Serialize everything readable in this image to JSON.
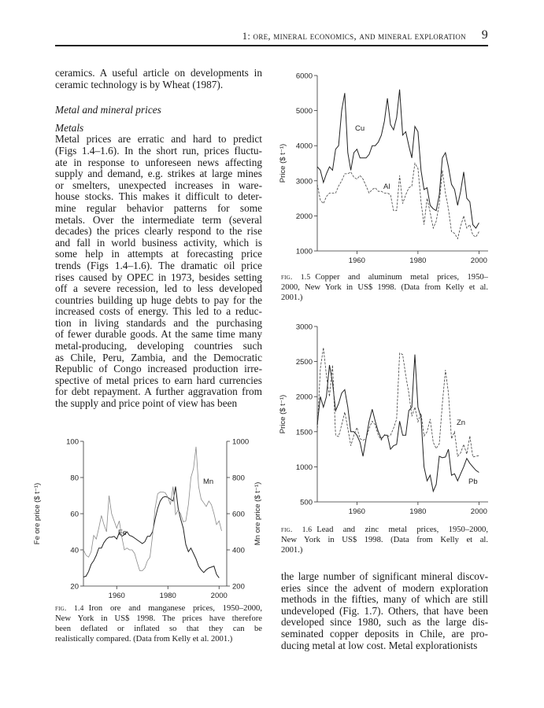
{
  "header": {
    "running_title": "1: ore, mineral economics, and mineral exploration",
    "page_number": "9"
  },
  "left_column": {
    "intro_lines": [
      "ceramics. A useful article on developments in",
      "ceramic technology is by Wheat (1987)."
    ],
    "section_heading": "Metal and mineral prices",
    "subsection_heading": "Metals",
    "body_lines": [
      "Metal prices are erratic and hard to predict",
      "(Figs 1.4–1.6). In the short run, prices fluctu-",
      "ate in response to unforeseen news affecting",
      "supply and demand, e.g. strikes at large mines",
      "or smelters, unexpected increases in ware-",
      "house stocks. This makes it difficult to deter-",
      "mine regular behavior patterns for some",
      "metals. Over the intermediate term (several",
      "decades) the prices clearly respond to the rise",
      "and fall in world business activity, which is",
      "some help in attempts at forecasting price",
      "trends (Figs 1.4–1.6). The dramatic oil price",
      "rises caused by OPEC in 1973, besides setting",
      "off a severe recession, led to less developed",
      "countries building up huge debts to pay for the",
      "increased costs of energy. This led to a reduc-",
      "tion in living standards and the purchasing",
      "of fewer durable goods. At the same time many",
      "metal-producing, developing countries such",
      "as Chile, Peru, Zambia, and the Democratic",
      "Republic of Congo increased production irre-",
      "spective of metal prices to earn hard currencies",
      "for debt repayment. A further aggravation from",
      "the supply and price point of view has been"
    ]
  },
  "right_column": {
    "body_lines": [
      "the large number of significant mineral discov-",
      "eries since the advent of modern exploration",
      "methods in the fifties, many of which are still",
      "undeveloped (Fig. 1.7). Others, that have been",
      "developed since 1980, such as the large dis-",
      "seminated copper deposits in Chile, are pro-",
      "ducing metal at low cost. Metal explorationists"
    ]
  },
  "figures": [
    {
      "label": "fig. 1.4",
      "caption_lines": [
        "Iron ore and manganese prices, 1950–2000,",
        "New York in US$ 1998. The prices have therefore",
        "been deflated or inflated so that they can be",
        "realistically compared. (Data from Kelly et al. 2001.)"
      ]
    },
    {
      "label": "fig. 1.5",
      "caption_lines": [
        "Copper and aluminum metal prices, 1950–",
        "2000, New York in US$ 1998. (Data from Kelly et al.",
        "2001.)"
      ]
    },
    {
      "label": "fig. 1.6",
      "caption_lines": [
        "Lead and zinc metal prices, 1950–2000,",
        "New York in US$ 1998. (Data from Kelly et al.",
        "2001.)"
      ]
    }
  ],
  "chart_data": [
    {
      "type": "line",
      "figure": "fig. 1.4",
      "xlabel": "",
      "ylabel": "Fe ore price ($ t⁻¹)",
      "ylabel_right": "Mn ore price ($ t⁻¹)",
      "xlim": [
        1947,
        2003
      ],
      "xticks": [
        1960,
        1980,
        2000
      ],
      "ylim": [
        20,
        100
      ],
      "yticks": [
        20,
        40,
        60,
        80,
        100
      ],
      "ylim_right": [
        200,
        1000
      ],
      "yticks_right": [
        200,
        400,
        600,
        800,
        1000
      ],
      "grid": false,
      "legend": "inline labels",
      "series": [
        {
          "name": "Fe",
          "axis": "left",
          "style": "solid",
          "color": "#222222",
          "x_start": 1947,
          "values": [
            25,
            25.5,
            28,
            32,
            34,
            37,
            41,
            41,
            44,
            46,
            47,
            47,
            47.5,
            46,
            49.5,
            47.5,
            48.5,
            50,
            48,
            47.5,
            46.5,
            45.5,
            44.5,
            43.5,
            44.5,
            47.5,
            47.5,
            50,
            57,
            63,
            67,
            69,
            69.5,
            69,
            68,
            67,
            75,
            63,
            57,
            52,
            43,
            39,
            41,
            38,
            35,
            31,
            29,
            27.5,
            29,
            30,
            30.5,
            31,
            26.5,
            24.5
          ]
        },
        {
          "name": "Mn",
          "axis": "right",
          "style": "solid-light",
          "color": "#8a8a8a",
          "x_start": 1947,
          "values": [
            400,
            370,
            360,
            390,
            480,
            460,
            520,
            590,
            540,
            500,
            700,
            600,
            560,
            520,
            560,
            470,
            400,
            410,
            400,
            400,
            380,
            330,
            285,
            285,
            300,
            340,
            360,
            480,
            630,
            710,
            720,
            720,
            715,
            690,
            650,
            750,
            595,
            620,
            600,
            555,
            560,
            650,
            800,
            850,
            970,
            750,
            680,
            660,
            640,
            670,
            650,
            600,
            540,
            560,
            505
          ]
        }
      ]
    },
    {
      "type": "line",
      "figure": "fig. 1.5",
      "xlabel": "",
      "ylabel": "Price ($ t⁻¹)",
      "xlim": [
        1947,
        2003
      ],
      "xticks": [
        1960,
        1980,
        2000
      ],
      "ylim": [
        1000,
        6000
      ],
      "yticks": [
        1000,
        2000,
        3000,
        4000,
        5000,
        6000
      ],
      "grid": false,
      "legend": "inline labels",
      "series": [
        {
          "name": "Cu",
          "style": "solid",
          "color": "#222222",
          "x_start": 1947,
          "values": [
            3400,
            3300,
            2950,
            3200,
            3400,
            3300,
            3900,
            4000,
            5000,
            5500,
            3800,
            3300,
            3800,
            3900,
            3650,
            3650,
            3650,
            3750,
            4000,
            4000,
            4100,
            4300,
            4700,
            5350,
            4600,
            4450,
            4800,
            5600,
            4300,
            4400,
            4000,
            3650,
            4550,
            4400,
            3300,
            2750,
            2800,
            2300,
            2200,
            2150,
            2600,
            3650,
            3800,
            3400,
            2900,
            2750,
            2300,
            2700,
            3250,
            2500,
            2400,
            1750,
            1650,
            1800
          ]
        },
        {
          "name": "Al",
          "style": "dashed",
          "color": "#444444",
          "x_start": 1947,
          "values": [
            2900,
            2450,
            2350,
            2550,
            2650,
            2650,
            2650,
            2850,
            3000,
            3200,
            3200,
            3250,
            3100,
            3050,
            3150,
            3050,
            2850,
            2650,
            2750,
            2800,
            2700,
            2700,
            2650,
            2650,
            2600,
            2150,
            2150,
            3150,
            2350,
            2600,
            2800,
            2850,
            3500,
            3350,
            2400,
            1750,
            2500,
            2100,
            1650,
            1850,
            2350,
            3300,
            2650,
            2200,
            1550,
            1500,
            1350,
            1700,
            2000,
            1650,
            1750,
            1450,
            1400,
            1550
          ]
        }
      ]
    },
    {
      "type": "line",
      "figure": "fig. 1.6",
      "xlabel": "",
      "ylabel": "Price ($ t⁻¹)",
      "xlim": [
        1947,
        2003
      ],
      "xticks": [
        1960,
        1980,
        2000
      ],
      "ylim": [
        500,
        3000
      ],
      "yticks": [
        500,
        1000,
        1500,
        2000,
        2500,
        3000
      ],
      "grid": false,
      "legend": "inline labels",
      "series": [
        {
          "name": "Pb",
          "style": "solid",
          "color": "#222222",
          "x_start": 1947,
          "values": [
            1600,
            2000,
            1850,
            2000,
            2450,
            2200,
            1800,
            1900,
            2050,
            2100,
            1850,
            1500,
            1500,
            1450,
            1350,
            1150,
            1400,
            1650,
            1820,
            1650,
            1500,
            1400,
            1450,
            1450,
            1250,
            1300,
            1320,
            1650,
            1450,
            1450,
            1800,
            1850,
            2600,
            1850,
            1700,
            1000,
            800,
            880,
            650,
            750,
            1150,
            1130,
            1140,
            1250,
            880,
            900,
            800,
            900,
            1000,
            1120,
            1050,
            1000,
            950,
            920
          ]
        },
        {
          "name": "Zn",
          "style": "dashed",
          "color": "#444444",
          "x_start": 1947,
          "values": [
            1500,
            2400,
            2700,
            2300,
            2000,
            2450,
            1450,
            1430,
            1600,
            1780,
            1550,
            1300,
            1450,
            1560,
            1400,
            1380,
            1400,
            1550,
            1650,
            1600,
            1450,
            1380,
            1460,
            1430,
            1450,
            1550,
            1680,
            2620,
            2600,
            2300,
            2050,
            1720,
            1850,
            1640,
            1760,
            1440,
            1500,
            1680,
            1350,
            1260,
            1330,
            1900,
            2380,
            2050,
            1400,
            1500,
            1150,
            1200,
            1320,
            1180,
            1440,
            1140,
            1150,
            1160
          ]
        }
      ]
    }
  ]
}
